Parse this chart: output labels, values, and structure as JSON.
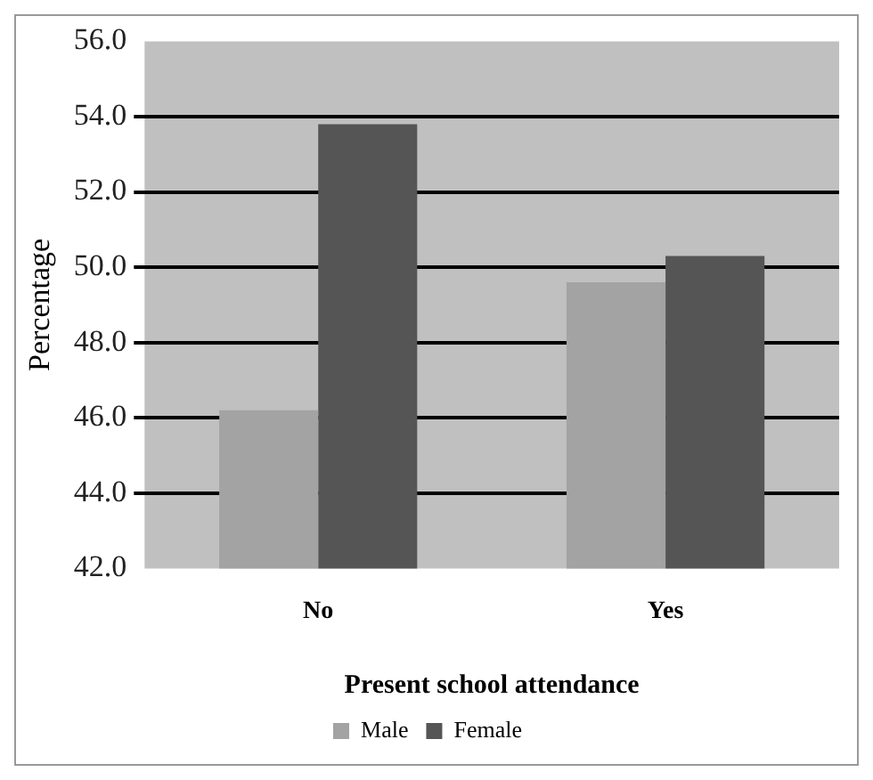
{
  "chart_data": {
    "type": "bar",
    "xlabel": "Present school attendance",
    "ylabel": "Percentage",
    "categories": [
      "No",
      "Yes"
    ],
    "series": [
      {
        "name": "Male",
        "color": "#a3a3a3",
        "values": [
          46.2,
          49.6
        ]
      },
      {
        "name": "Female",
        "color": "#555555",
        "values": [
          53.8,
          50.3
        ]
      }
    ],
    "ylim": [
      42,
      56
    ],
    "yticks": [
      {
        "value": 42,
        "label": "42.0"
      },
      {
        "value": 44,
        "label": "44.0"
      },
      {
        "value": 46,
        "label": "46.0"
      },
      {
        "value": 48,
        "label": "48.0"
      },
      {
        "value": 50,
        "label": "50.0"
      },
      {
        "value": 52,
        "label": "52.0"
      },
      {
        "value": 54,
        "label": "54.0"
      },
      {
        "value": 56,
        "label": "56.0"
      }
    ],
    "grid": "y",
    "legend": "bottom"
  }
}
